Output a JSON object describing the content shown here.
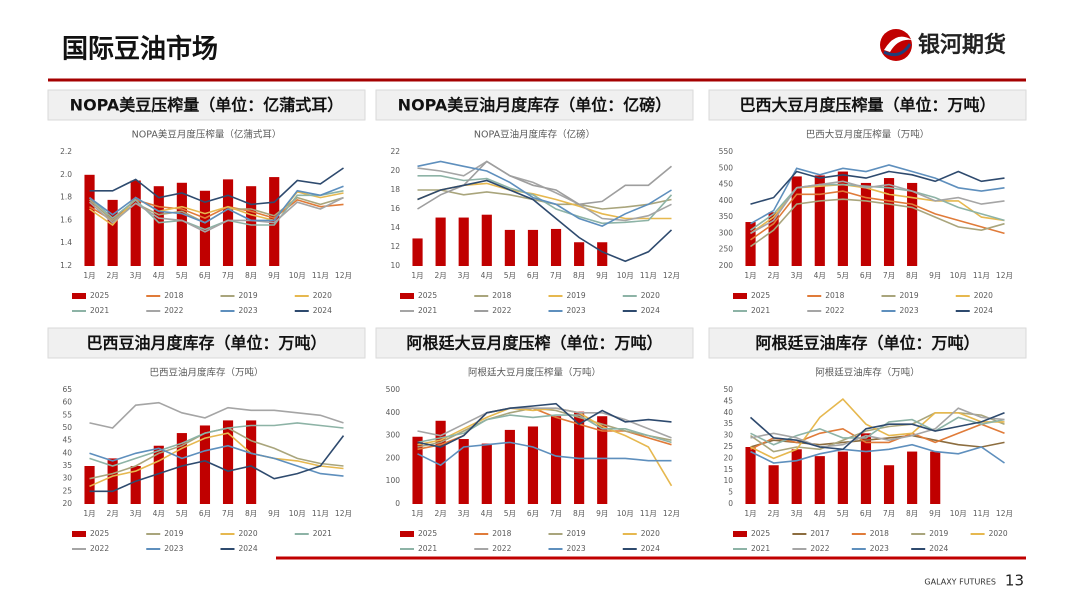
{
  "header": {
    "title": "国际豆油市场",
    "logo": "银河期货"
  },
  "footer": {
    "brand": "GALAXY FUTURES",
    "page": "13"
  },
  "chart_data": [
    {
      "type": "combo",
      "heading": "NOPA美豆压榨量（单位：亿蒲式耳）",
      "title": "NOPA美豆月度压榨量（亿蒲式耳）",
      "categories": [
        "1月",
        "2月",
        "3月",
        "4月",
        "5月",
        "6月",
        "7月",
        "8月",
        "9月",
        "10月",
        "11月",
        "12月"
      ],
      "ylim": [
        1.2,
        2.2
      ],
      "yticks": [
        1.2,
        1.4,
        1.6,
        1.8,
        {
          "value": 2,
          "label": "2.0"
        },
        2.2
      ],
      "series": [
        {
          "name": "2025",
          "type": "bar",
          "color": "#c00000",
          "values": [
            2.0,
            1.78,
            1.95,
            1.9,
            1.93,
            1.86,
            1.96,
            1.9,
            1.98,
            null,
            null,
            null
          ]
        },
        {
          "name": "2018",
          "type": "line",
          "color": "#e07b39",
          "values": [
            1.72,
            1.6,
            1.78,
            1.72,
            1.7,
            1.62,
            1.72,
            1.68,
            1.62,
            1.78,
            1.72,
            1.74
          ]
        },
        {
          "name": "2019",
          "type": "line",
          "color": "#a9a57c",
          "values": [
            1.78,
            1.6,
            1.75,
            1.65,
            1.68,
            1.58,
            1.7,
            1.7,
            1.64,
            1.8,
            1.74,
            1.8
          ]
        },
        {
          "name": "2020",
          "type": "line",
          "color": "#e6b84f",
          "values": [
            1.7,
            1.56,
            1.8,
            1.68,
            1.72,
            1.66,
            1.72,
            1.65,
            1.6,
            1.85,
            1.8,
            1.84
          ]
        },
        {
          "name": "2021",
          "type": "line",
          "color": "#8db3a6",
          "values": [
            1.8,
            1.62,
            1.78,
            1.58,
            1.6,
            1.52,
            1.6,
            1.56,
            1.56,
            1.82,
            1.82,
            1.86
          ]
        },
        {
          "name": "2022",
          "type": "line",
          "color": "#a5a5a5",
          "values": [
            1.76,
            1.58,
            1.75,
            1.62,
            1.6,
            1.5,
            1.6,
            1.6,
            1.58,
            1.76,
            1.7,
            1.8
          ]
        },
        {
          "name": "2023",
          "type": "line",
          "color": "#5e8fbd",
          "values": [
            1.8,
            1.65,
            1.8,
            1.68,
            1.66,
            1.58,
            1.7,
            1.6,
            1.6,
            1.86,
            1.82,
            1.9
          ]
        },
        {
          "name": "2024",
          "type": "line",
          "color": "#2e4a6e",
          "values": [
            1.86,
            1.86,
            1.96,
            1.8,
            1.84,
            1.76,
            1.82,
            1.74,
            1.76,
            1.95,
            1.92,
            2.06
          ]
        }
      ]
    },
    {
      "type": "combo",
      "heading": "NOPA美豆油月度库存（单位：亿磅）",
      "title": "NOPA豆油月度库存（亿磅）",
      "categories": [
        "1月",
        "2月",
        "3月",
        "4月",
        "5月",
        "6月",
        "7月",
        "8月",
        "9月",
        "10月",
        "11月",
        "12月"
      ],
      "ylim": [
        10,
        22
      ],
      "yticks": [
        10,
        12,
        14,
        16,
        18,
        20,
        22
      ],
      "series": [
        {
          "name": "2025",
          "type": "bar",
          "color": "#c00000",
          "values": [
            12.9,
            15.1,
            15.1,
            15.4,
            13.8,
            13.8,
            13.9,
            12.5,
            12.5,
            null,
            null,
            null
          ]
        },
        {
          "name": "2018",
          "type": "line",
          "color": "#a9a57c",
          "values": [
            18,
            18,
            17.5,
            17.8,
            17.5,
            17,
            16.5,
            16.5,
            16,
            16.2,
            16.5,
            17
          ]
        },
        {
          "name": "2019",
          "type": "line",
          "color": "#e6b84f",
          "values": [
            17,
            18,
            18.5,
            18.7,
            18,
            17.6,
            17,
            16.3,
            15.5,
            15,
            15,
            15
          ]
        },
        {
          "name": "2020",
          "type": "line",
          "color": "#8db3a6",
          "values": [
            19.5,
            19.5,
            19,
            19.2,
            18.2,
            17.5,
            16,
            15.2,
            14.5,
            14.6,
            14.8,
            17.5
          ]
        },
        {
          "name": "2021",
          "type": "line",
          "color": "#a5a5a5",
          "values": [
            20.3,
            20,
            19.5,
            21,
            19.5,
            18.8,
            17.7,
            16.5,
            15,
            14.8,
            15.3,
            16.5
          ]
        },
        {
          "name": "2022",
          "type": "line",
          "color": "#9e9e9e",
          "values": [
            16,
            17.5,
            18.5,
            21,
            19.5,
            18.5,
            18,
            16.5,
            16.8,
            18.5,
            18.5,
            20.5
          ]
        },
        {
          "name": "2023",
          "type": "line",
          "color": "#5e8fbd",
          "values": [
            20.5,
            21,
            20.5,
            20,
            18.8,
            17.2,
            16.5,
            15,
            14.2,
            15.5,
            16.5,
            18
          ]
        },
        {
          "name": "2024",
          "type": "line",
          "color": "#2e4a6e",
          "values": [
            17,
            18,
            18.5,
            19,
            18,
            17,
            15,
            13,
            11.5,
            10.5,
            11.5,
            13.8
          ]
        }
      ]
    },
    {
      "type": "combo",
      "heading": "巴西大豆月度压榨量（单位：万吨）",
      "title": "巴西大豆月度压榨量（万吨）",
      "categories": [
        "1月",
        "2月",
        "3月",
        "4月",
        "5月",
        "6月",
        "7月",
        "8月",
        "9月",
        "10月",
        "11月",
        "12月"
      ],
      "ylim": [
        200,
        550
      ],
      "yticks": [
        200,
        250,
        300,
        350,
        400,
        450,
        500,
        550
      ],
      "series": [
        {
          "name": "2025",
          "type": "bar",
          "color": "#c00000",
          "values": [
            335,
            365,
            475,
            478,
            490,
            455,
            470,
            455,
            null,
            null,
            null,
            null
          ]
        },
        {
          "name": "2018",
          "type": "line",
          "color": "#e07b39",
          "values": [
            280,
            330,
            420,
            420,
            430,
            410,
            400,
            390,
            360,
            340,
            320,
            300
          ]
        },
        {
          "name": "2019",
          "type": "line",
          "color": "#a9a57c",
          "values": [
            260,
            310,
            390,
            400,
            405,
            400,
            390,
            380,
            350,
            320,
            310,
            330
          ]
        },
        {
          "name": "2020",
          "type": "line",
          "color": "#e6b84f",
          "values": [
            300,
            350,
            440,
            445,
            450,
            440,
            420,
            410,
            400,
            400,
            350,
            340
          ]
        },
        {
          "name": "2021",
          "type": "line",
          "color": "#8db3a6",
          "values": [
            310,
            360,
            440,
            450,
            450,
            445,
            440,
            430,
            410,
            380,
            360,
            340
          ]
        },
        {
          "name": "2022",
          "type": "line",
          "color": "#a5a5a5",
          "values": [
            300,
            340,
            440,
            450,
            460,
            440,
            450,
            430,
            400,
            410,
            390,
            400
          ]
        },
        {
          "name": "2023",
          "type": "line",
          "color": "#5e8fbd",
          "values": [
            330,
            370,
            500,
            480,
            500,
            490,
            510,
            490,
            470,
            440,
            430,
            440
          ]
        },
        {
          "name": "2024",
          "type": "line",
          "color": "#2e4a6e",
          "values": [
            390,
            410,
            490,
            470,
            480,
            470,
            490,
            480,
            460,
            490,
            460,
            470
          ]
        }
      ]
    },
    {
      "type": "combo",
      "heading": "巴西豆油月度库存（单位：万吨）",
      "title": "巴西豆油月度库存（万吨）",
      "categories": [
        "1月",
        "2月",
        "3月",
        "4月",
        "5月",
        "6月",
        "7月",
        "8月",
        "9月",
        "10月",
        "11月",
        "12月"
      ],
      "ylim": [
        20,
        65
      ],
      "yticks": [
        20,
        25,
        30,
        35,
        40,
        45,
        50,
        55,
        60,
        65
      ],
      "series": [
        {
          "name": "2025",
          "type": "bar",
          "color": "#c00000",
          "values": [
            35,
            38,
            35,
            43,
            48,
            51,
            53,
            53,
            null,
            null,
            null,
            null
          ]
        },
        {
          "name": "2019",
          "type": "line",
          "color": "#a9a57c",
          "values": [
            30,
            32,
            35,
            40,
            43,
            48,
            50,
            45,
            42,
            38,
            36,
            35
          ]
        },
        {
          "name": "2020",
          "type": "line",
          "color": "#e6b84f",
          "values": [
            27,
            31,
            33,
            37,
            42,
            46,
            48,
            40,
            38,
            37,
            35,
            34
          ]
        },
        {
          "name": "2021",
          "type": "line",
          "color": "#8db3a6",
          "values": [
            38,
            35,
            38,
            41,
            44,
            48,
            50,
            51,
            51,
            52,
            51,
            50
          ]
        },
        {
          "name": "2022",
          "type": "line",
          "color": "#a5a5a5",
          "values": [
            52,
            50,
            59,
            60,
            56,
            54,
            58,
            57,
            57,
            56,
            55,
            52
          ]
        },
        {
          "name": "2023",
          "type": "line",
          "color": "#5e8fbd",
          "values": [
            40,
            37,
            40,
            42,
            38,
            41,
            43,
            40,
            38,
            35,
            32,
            31
          ]
        },
        {
          "name": "2024",
          "type": "line",
          "color": "#2e4a6e",
          "values": [
            25,
            25,
            29,
            32,
            35,
            37,
            33,
            35,
            30,
            32,
            35,
            47
          ]
        }
      ]
    },
    {
      "type": "combo",
      "heading": "阿根廷大豆月度压榨（单位：万吨）",
      "title": "阿根廷大豆月度压榨量（万吨）",
      "categories": [
        "1月",
        "2月",
        "3月",
        "4月",
        "5月",
        "6月",
        "7月",
        "8月",
        "9月",
        "10月",
        "11月",
        "12月"
      ],
      "ylim": [
        0,
        500
      ],
      "yticks": [
        0,
        100,
        200,
        300,
        400,
        500
      ],
      "series": [
        {
          "name": "2025",
          "type": "bar",
          "color": "#c00000",
          "values": [
            295,
            365,
            285,
            265,
            325,
            340,
            385,
            405,
            385,
            null,
            null,
            null
          ]
        },
        {
          "name": "2018",
          "type": "line",
          "color": "#e07b39",
          "values": [
            240,
            260,
            300,
            400,
            420,
            420,
            380,
            350,
            320,
            320,
            290,
            260
          ]
        },
        {
          "name": "2019",
          "type": "line",
          "color": "#a9a57c",
          "values": [
            250,
            270,
            320,
            370,
            400,
            420,
            410,
            380,
            350,
            320,
            300,
            280
          ]
        },
        {
          "name": "2020",
          "type": "line",
          "color": "#e6b84f",
          "values": [
            260,
            280,
            330,
            380,
            420,
            410,
            420,
            400,
            340,
            300,
            250,
            80
          ]
        },
        {
          "name": "2021",
          "type": "line",
          "color": "#8db3a6",
          "values": [
            270,
            290,
            310,
            370,
            390,
            380,
            390,
            390,
            330,
            330,
            300,
            270
          ]
        },
        {
          "name": "2022",
          "type": "line",
          "color": "#a5a5a5",
          "values": [
            320,
            300,
            350,
            400,
            420,
            420,
            420,
            400,
            400,
            370,
            330,
            290
          ]
        },
        {
          "name": "2023",
          "type": "line",
          "color": "#5e8fbd",
          "values": [
            220,
            170,
            250,
            260,
            270,
            250,
            210,
            200,
            200,
            200,
            190,
            190
          ]
        },
        {
          "name": "2024",
          "type": "line",
          "color": "#2e4a6e",
          "values": [
            270,
            250,
            300,
            400,
            420,
            430,
            440,
            350,
            410,
            360,
            370,
            360
          ]
        }
      ]
    },
    {
      "type": "combo",
      "heading": "阿根廷豆油库存（单位：万吨）",
      "title": "阿根廷豆油库存（万吨）",
      "categories": [
        "1月",
        "2月",
        "3月",
        "4月",
        "5月",
        "6月",
        "7月",
        "8月",
        "9月",
        "10月",
        "11月",
        "12月"
      ],
      "ylim": [
        0,
        50
      ],
      "yticks": [
        0,
        5,
        10,
        15,
        20,
        25,
        30,
        35,
        40,
        45,
        50
      ],
      "series": [
        {
          "name": "2025",
          "type": "bar",
          "color": "#c00000",
          "values": [
            25,
            17,
            24,
            21,
            23,
            31,
            17,
            23,
            23,
            null,
            null,
            null
          ]
        },
        {
          "name": "2017",
          "type": "line",
          "color": "#8c6d3f",
          "values": [
            25,
            28,
            27,
            26,
            27,
            28,
            29,
            30,
            28,
            26,
            25,
            27
          ]
        },
        {
          "name": "2018",
          "type": "line",
          "color": "#e07b39",
          "values": [
            24,
            29,
            27,
            31,
            33,
            27,
            27,
            31,
            27,
            31,
            35,
            31
          ]
        },
        {
          "name": "2019",
          "type": "line",
          "color": "#a9a57c",
          "values": [
            30,
            23,
            25,
            24,
            28,
            32,
            34,
            35,
            40,
            40,
            39,
            35
          ]
        },
        {
          "name": "2020",
          "type": "line",
          "color": "#e6b84f",
          "values": [
            25,
            20,
            24,
            38,
            46,
            35,
            30,
            31,
            40,
            40,
            36,
            36
          ]
        },
        {
          "name": "2021",
          "type": "line",
          "color": "#8db3a6",
          "values": [
            31,
            26,
            30,
            33,
            29,
            29,
            36,
            37,
            32,
            38,
            35,
            37
          ]
        },
        {
          "name": "2022",
          "type": "line",
          "color": "#a5a5a5",
          "values": [
            29,
            31,
            29,
            25,
            26,
            30,
            28,
            30,
            33,
            42,
            38,
            37
          ]
        },
        {
          "name": "2023",
          "type": "line",
          "color": "#5e8fbd",
          "values": [
            23,
            18,
            19,
            22,
            24,
            23,
            24,
            26,
            23,
            22,
            25,
            18
          ]
        },
        {
          "name": "2024",
          "type": "line",
          "color": "#2e4a6e",
          "values": [
            38,
            29,
            28,
            25,
            24,
            33,
            35,
            35,
            32,
            34,
            36,
            40
          ]
        }
      ]
    }
  ]
}
